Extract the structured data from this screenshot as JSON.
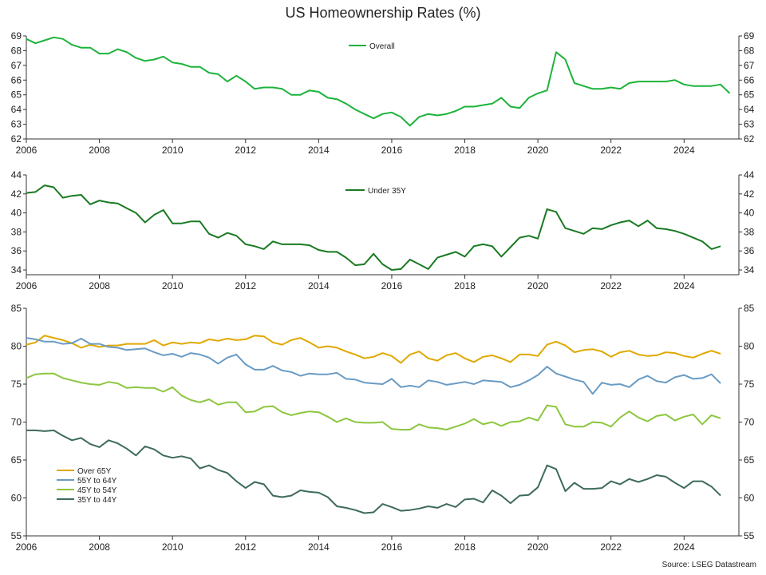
{
  "title": "US Homeownership Rates (%)",
  "source": "Source: LSEG Datastream",
  "colors": {
    "overall": "#1db33b",
    "under35": "#1a7a22",
    "over65": "#e0a800",
    "age55_64": "#6a9bc4",
    "age45_54": "#8cc63f",
    "age35_44": "#3e6b58",
    "axis": "#333333"
  },
  "chart_data": [
    {
      "type": "line",
      "title": "",
      "x_ticks": [
        "2006",
        "2008",
        "2010",
        "2012",
        "2014",
        "2016",
        "2018",
        "2020",
        "2022",
        "2024"
      ],
      "xlim": [
        2006,
        2025.5
      ],
      "ylim": [
        62,
        69
      ],
      "y_ticks": [
        62,
        63,
        64,
        65,
        66,
        67,
        68,
        69
      ],
      "legend": "top-center",
      "series": [
        {
          "name": "Overall",
          "color_key": "overall",
          "values": [
            68.8,
            68.5,
            68.7,
            68.9,
            68.8,
            68.4,
            68.2,
            68.2,
            67.8,
            67.8,
            68.1,
            67.9,
            67.5,
            67.3,
            67.4,
            67.6,
            67.2,
            67.1,
            66.9,
            66.9,
            66.5,
            66.4,
            65.9,
            66.3,
            65.9,
            65.4,
            65.5,
            65.5,
            65.4,
            65.0,
            65.0,
            65.3,
            65.2,
            64.8,
            64.7,
            64.4,
            64.0,
            63.7,
            63.4,
            63.7,
            63.8,
            63.5,
            62.9,
            63.5,
            63.7,
            63.6,
            63.7,
            63.9,
            64.2,
            64.2,
            64.3,
            64.4,
            64.8,
            64.2,
            64.1,
            64.8,
            65.1,
            65.3,
            67.9,
            67.4,
            65.8,
            65.6,
            65.4,
            65.4,
            65.5,
            65.4,
            65.8,
            65.9,
            65.9,
            65.9,
            65.9,
            66.0,
            65.7,
            65.6,
            65.6,
            65.6,
            65.7,
            65.1
          ]
        }
      ]
    },
    {
      "type": "line",
      "title": "",
      "x_ticks": [
        "2006",
        "2008",
        "2010",
        "2012",
        "2014",
        "2016",
        "2018",
        "2020",
        "2022",
        "2024"
      ],
      "xlim": [
        2006,
        2025.5
      ],
      "ylim": [
        33.5,
        44
      ],
      "y_ticks": [
        34,
        36,
        38,
        40,
        42,
        44
      ],
      "legend": "top-center",
      "series": [
        {
          "name": "Under 35Y",
          "color_key": "under35",
          "values": [
            42.1,
            42.2,
            42.9,
            42.7,
            41.6,
            41.8,
            41.9,
            40.9,
            41.3,
            41.1,
            41.0,
            40.5,
            40.0,
            39.0,
            39.8,
            40.3,
            38.9,
            38.9,
            39.1,
            39.1,
            37.8,
            37.4,
            37.9,
            37.6,
            36.7,
            36.5,
            36.2,
            37.0,
            36.7,
            36.7,
            36.7,
            36.6,
            36.1,
            35.9,
            35.9,
            35.3,
            34.5,
            34.6,
            35.7,
            34.6,
            34.0,
            34.1,
            35.1,
            34.6,
            34.1,
            35.3,
            35.6,
            35.9,
            35.4,
            36.5,
            36.7,
            36.5,
            35.4,
            36.4,
            37.4,
            37.6,
            37.3,
            40.4,
            40.1,
            38.4,
            38.1,
            37.8,
            38.4,
            38.3,
            38.7,
            39.0,
            39.2,
            38.6,
            39.2,
            38.4,
            38.3,
            38.1,
            37.8,
            37.4,
            37.0,
            36.2,
            36.5
          ]
        }
      ]
    },
    {
      "type": "line",
      "title": "",
      "x_ticks": [
        "2006",
        "2008",
        "2010",
        "2012",
        "2014",
        "2016",
        "2018",
        "2020",
        "2022",
        "2024"
      ],
      "xlim": [
        2006,
        2025.5
      ],
      "ylim": [
        55,
        85
      ],
      "y_ticks": [
        55,
        60,
        65,
        70,
        75,
        80,
        85
      ],
      "legend": "bottom-left",
      "series": [
        {
          "name": "Over 65Y",
          "color_key": "over65",
          "values": [
            80.2,
            80.5,
            81.4,
            81.1,
            80.8,
            80.4,
            79.8,
            80.2,
            79.9,
            80.1,
            80.1,
            80.3,
            80.3,
            80.3,
            80.8,
            80.1,
            80.5,
            80.3,
            80.5,
            80.4,
            80.9,
            80.7,
            81.0,
            80.8,
            80.9,
            81.4,
            81.3,
            80.5,
            80.2,
            80.8,
            81.1,
            80.5,
            79.8,
            80.0,
            79.8,
            79.3,
            78.9,
            78.4,
            78.6,
            79.1,
            78.7,
            77.8,
            78.9,
            79.3,
            78.4,
            78.1,
            78.8,
            79.1,
            78.4,
            77.9,
            78.6,
            78.8,
            78.4,
            77.9,
            78.9,
            78.9,
            78.7,
            80.2,
            80.6,
            80.1,
            79.2,
            79.5,
            79.6,
            79.3,
            78.6,
            79.2,
            79.4,
            78.9,
            78.7,
            78.8,
            79.2,
            79.1,
            78.7,
            78.5,
            79.0,
            79.4,
            79.0
          ]
        },
        {
          "name": "55Y to 64Y",
          "color_key": "age55_64",
          "values": [
            81.1,
            80.9,
            80.6,
            80.6,
            80.3,
            80.4,
            81.0,
            80.3,
            80.3,
            79.9,
            79.8,
            79.5,
            79.6,
            79.7,
            79.2,
            78.8,
            79.0,
            78.6,
            79.1,
            78.9,
            78.5,
            77.7,
            78.5,
            78.9,
            77.6,
            76.9,
            76.9,
            77.4,
            76.8,
            76.6,
            76.1,
            76.4,
            76.3,
            76.3,
            76.5,
            75.7,
            75.6,
            75.2,
            75.1,
            75.0,
            75.7,
            74.6,
            74.8,
            74.6,
            75.5,
            75.3,
            74.9,
            75.1,
            75.3,
            75.0,
            75.5,
            75.4,
            75.3,
            74.6,
            74.9,
            75.5,
            76.2,
            77.3,
            76.4,
            76.0,
            75.6,
            75.3,
            73.7,
            75.2,
            74.9,
            75.0,
            74.6,
            75.6,
            76.1,
            75.4,
            75.2,
            75.9,
            76.2,
            75.7,
            75.8,
            76.3,
            75.1
          ]
        },
        {
          "name": "45Y to 54Y",
          "color_key": "age45_54",
          "values": [
            75.8,
            76.3,
            76.4,
            76.4,
            75.8,
            75.5,
            75.2,
            75.0,
            74.9,
            75.3,
            75.1,
            74.5,
            74.6,
            74.5,
            74.5,
            74.0,
            74.6,
            73.5,
            72.9,
            72.6,
            73.0,
            72.3,
            72.6,
            72.6,
            71.3,
            71.4,
            72.0,
            72.1,
            71.3,
            70.9,
            71.2,
            71.4,
            71.3,
            70.7,
            70.0,
            70.5,
            70.0,
            69.9,
            69.9,
            70.0,
            69.1,
            69.0,
            69.0,
            69.7,
            69.3,
            69.2,
            69.0,
            69.4,
            69.8,
            70.4,
            69.7,
            70.0,
            69.5,
            70.0,
            70.1,
            70.6,
            70.2,
            72.2,
            72.0,
            69.7,
            69.4,
            69.4,
            70.0,
            69.9,
            69.4,
            70.6,
            71.4,
            70.6,
            70.1,
            70.8,
            71.0,
            70.2,
            70.7,
            71.0,
            69.7,
            70.9,
            70.5
          ]
        },
        {
          "name": "35Y to 44Y",
          "color_key": "age35_44",
          "values": [
            68.9,
            68.9,
            68.8,
            68.9,
            68.2,
            67.6,
            67.9,
            67.1,
            66.7,
            67.6,
            67.2,
            66.5,
            65.6,
            66.8,
            66.4,
            65.6,
            65.3,
            65.5,
            65.2,
            63.9,
            64.3,
            63.7,
            63.3,
            62.2,
            61.3,
            62.1,
            61.8,
            60.3,
            60.1,
            60.3,
            61.0,
            60.8,
            60.7,
            60.1,
            58.9,
            58.7,
            58.4,
            58.0,
            58.1,
            59.2,
            58.8,
            58.3,
            58.4,
            58.6,
            58.9,
            58.7,
            59.2,
            58.8,
            59.8,
            59.9,
            59.4,
            61.0,
            60.3,
            59.3,
            60.3,
            60.4,
            61.4,
            64.3,
            63.8,
            60.9,
            62.0,
            61.2,
            61.2,
            61.3,
            62.2,
            61.8,
            62.5,
            62.1,
            62.5,
            63.0,
            62.8,
            62.0,
            61.3,
            62.2,
            62.2,
            61.5,
            60.3
          ]
        }
      ]
    }
  ]
}
